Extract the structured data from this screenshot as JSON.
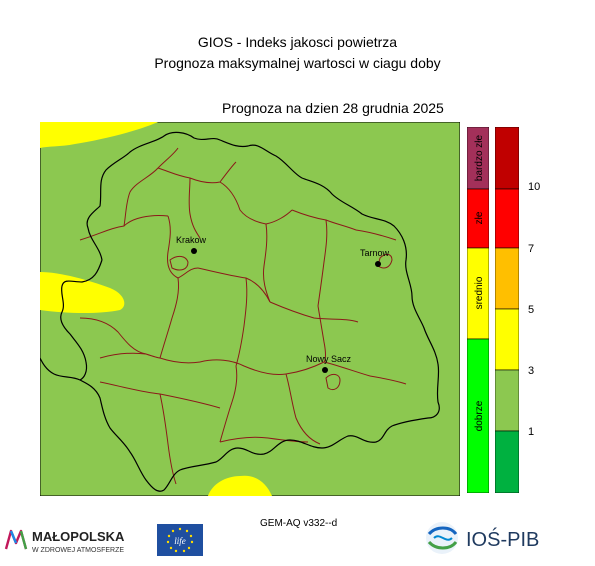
{
  "header": {
    "title": "GIOS - Indeks jakosci powietrza",
    "subtitle": "Prognoza maksymalnej wartosci w ciagu doby",
    "forecast_date": "Prognoza na dzien  28 grudnia 2025"
  },
  "map": {
    "cities": [
      {
        "name": "Krakow"
      },
      {
        "name": "Tarnow"
      },
      {
        "name": "Nowy Sacz"
      }
    ],
    "colors": {
      "dobre": "#8cc850",
      "srednie": "#ffff00",
      "boundary_region": "#000000",
      "boundary_county": "#8b1a1a"
    }
  },
  "legend": {
    "classes": [
      {
        "label": "bardzo złe",
        "color": "#a3305a"
      },
      {
        "label": "złe",
        "color": "#ff0000"
      },
      {
        "label": "srednio",
        "color": "#ffff00"
      },
      {
        "label": "dobrze",
        "color": "#00ff00"
      }
    ],
    "scale_colors": [
      "#00b140",
      "#8cc850",
      "#ffff00",
      "#ffbf00",
      "#ff0000",
      "#c00000"
    ],
    "ticks": [
      "1",
      "3",
      "5",
      "7",
      "10"
    ]
  },
  "footer": {
    "model": "GEM-AQ v332--d",
    "malopolska_name": "MAŁOPOLSKA",
    "malopolska_tagline": "W ZDROWEJ ATMOSFERZE",
    "eu_text": "life",
    "institute_name": "IOŚ-PIB"
  }
}
